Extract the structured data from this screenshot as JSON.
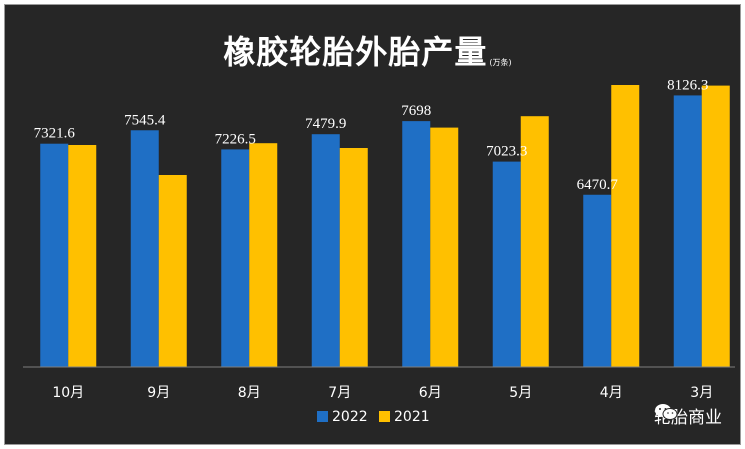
{
  "chart_data": {
    "type": "bar",
    "title": "橡胶轮胎外胎产量",
    "unit": "(万条)",
    "categories": [
      "10月",
      "9月",
      "8月",
      "7月",
      "6月",
      "5月",
      "4月",
      "3月"
    ],
    "series": [
      {
        "name": "2022",
        "color": "#1f6fc5",
        "values": [
          7321.6,
          7545.4,
          7226.5,
          7479.9,
          7698,
          7023.3,
          6470.7,
          8126.3
        ]
      },
      {
        "name": "2021",
        "color": "#ffc000",
        "values": [
          7300,
          6800,
          7330,
          7250,
          7590,
          7780,
          8300,
          8290
        ]
      }
    ],
    "data_labels": [
      "7321.6",
      "7545.4",
      "7226.5",
      "7479.9",
      "7698",
      "7023.3",
      "6470.7",
      "8126.3"
    ],
    "ylim": [
      3600,
      8600
    ],
    "grid": false,
    "legend_position": "bottom-center"
  },
  "watermark": {
    "text": "轮胎商业"
  }
}
